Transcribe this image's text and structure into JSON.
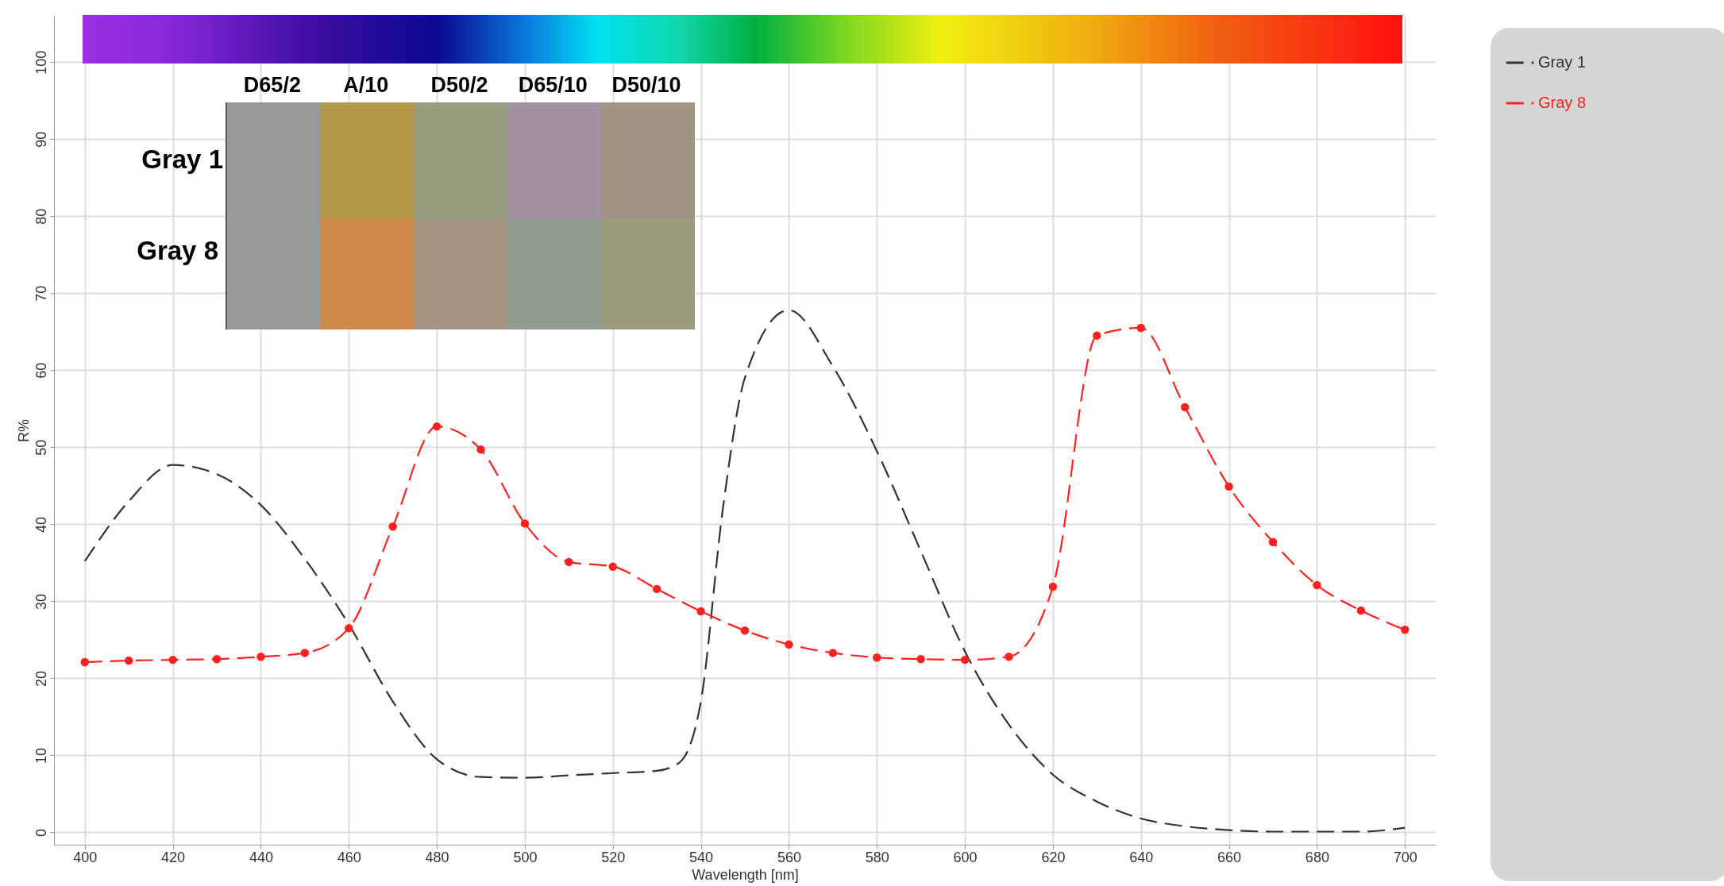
{
  "chart_data": {
    "type": "line",
    "xlabel": "Wavelength [nm]",
    "ylabel": "R%",
    "x": [
      400,
      410,
      420,
      430,
      440,
      450,
      460,
      470,
      480,
      490,
      500,
      510,
      520,
      530,
      540,
      550,
      560,
      570,
      580,
      590,
      600,
      610,
      620,
      630,
      640,
      650,
      660,
      670,
      680,
      690,
      700
    ],
    "series": [
      {
        "name": "Gray 1",
        "color": "#333333",
        "marker": "none",
        "line_style": "dashed",
        "x": [
          400,
          410,
          420,
          430,
          440,
          450,
          460,
          470,
          480,
          490,
          500,
          510,
          520,
          530,
          535,
          540,
          545,
          550,
          560,
          570,
          580,
          590,
          600,
          610,
          620,
          630,
          640,
          650,
          660,
          670,
          680,
          690,
          700
        ],
        "values": [
          35.2,
          43,
          47.7,
          46.5,
          42.5,
          35.5,
          27,
          17,
          9.5,
          7.2,
          7.1,
          7.4,
          7.7,
          8.0,
          9,
          17,
          42,
          59,
          67.8,
          60.5,
          49.5,
          36.5,
          23.5,
          14,
          7.5,
          4,
          1.8,
          0.8,
          0.3,
          0.1,
          0.1,
          0.1,
          0.6
        ]
      },
      {
        "name": "Gray 8",
        "color": "#ff2020",
        "marker": "circle",
        "line_style": "dashed",
        "values": [
          22.1,
          22.3,
          22.4,
          22.5,
          22.8,
          23.3,
          26.5,
          39.7,
          52.7,
          49.7,
          40.1,
          35.1,
          34.5,
          31.6,
          28.7,
          26.2,
          24.4,
          23.3,
          22.7,
          22.5,
          22.4,
          22.8,
          31.9,
          64.5,
          65.5,
          55.2,
          44.9,
          37.7,
          32.1,
          28.8,
          26.3
        ]
      }
    ],
    "xlim": [
      393,
      707
    ],
    "ylim": [
      -1.6,
      106
    ],
    "xticks": [
      400,
      420,
      440,
      460,
      480,
      500,
      520,
      540,
      560,
      580,
      600,
      620,
      640,
      660,
      680,
      700
    ],
    "yticks": [
      0,
      10,
      20,
      30,
      40,
      50,
      60,
      70,
      80,
      90,
      100
    ],
    "grid": true,
    "legend": "right",
    "annotations": [
      "D65/2",
      "A/10",
      "D50/2",
      "D65/10",
      "D50/10",
      "Gray 1",
      "Gray 8"
    ]
  }
}
